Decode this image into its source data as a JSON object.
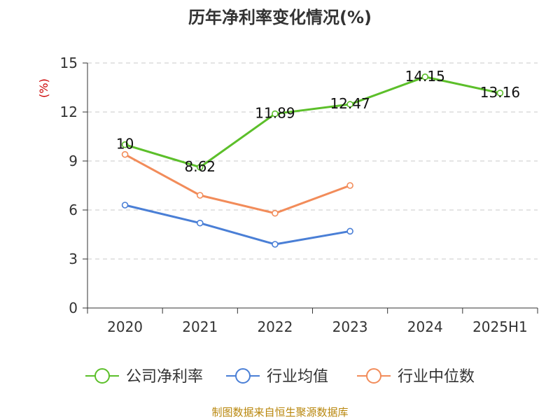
{
  "chart_data": {
    "type": "line",
    "title": "历年净利率变化情况(%)",
    "ylabel": "(%)",
    "categories": [
      "2020",
      "2021",
      "2022",
      "2023",
      "2024",
      "2025H1"
    ],
    "ylim": [
      0,
      15
    ],
    "yticks": [
      "0",
      "3",
      "6",
      "9",
      "12",
      "15"
    ],
    "grid": true,
    "legend_position": "bottom",
    "series": [
      {
        "name": "公司净利率",
        "color": "#5cbf2a",
        "values": [
          10,
          8.62,
          11.89,
          12.47,
          14.15,
          13.16
        ],
        "labels": [
          "10",
          "8.62",
          "11.89",
          "12.47",
          "14.15",
          "13.16"
        ]
      },
      {
        "name": "行业均值",
        "color": "#4a7fd6",
        "values": [
          6.3,
          5.2,
          3.9,
          4.7,
          null,
          null
        ]
      },
      {
        "name": "行业中位数",
        "color": "#f28c5a",
        "values": [
          9.4,
          6.9,
          5.8,
          7.5,
          null,
          null
        ]
      }
    ]
  },
  "source_note": "制图数据来自恒生聚源数据库"
}
